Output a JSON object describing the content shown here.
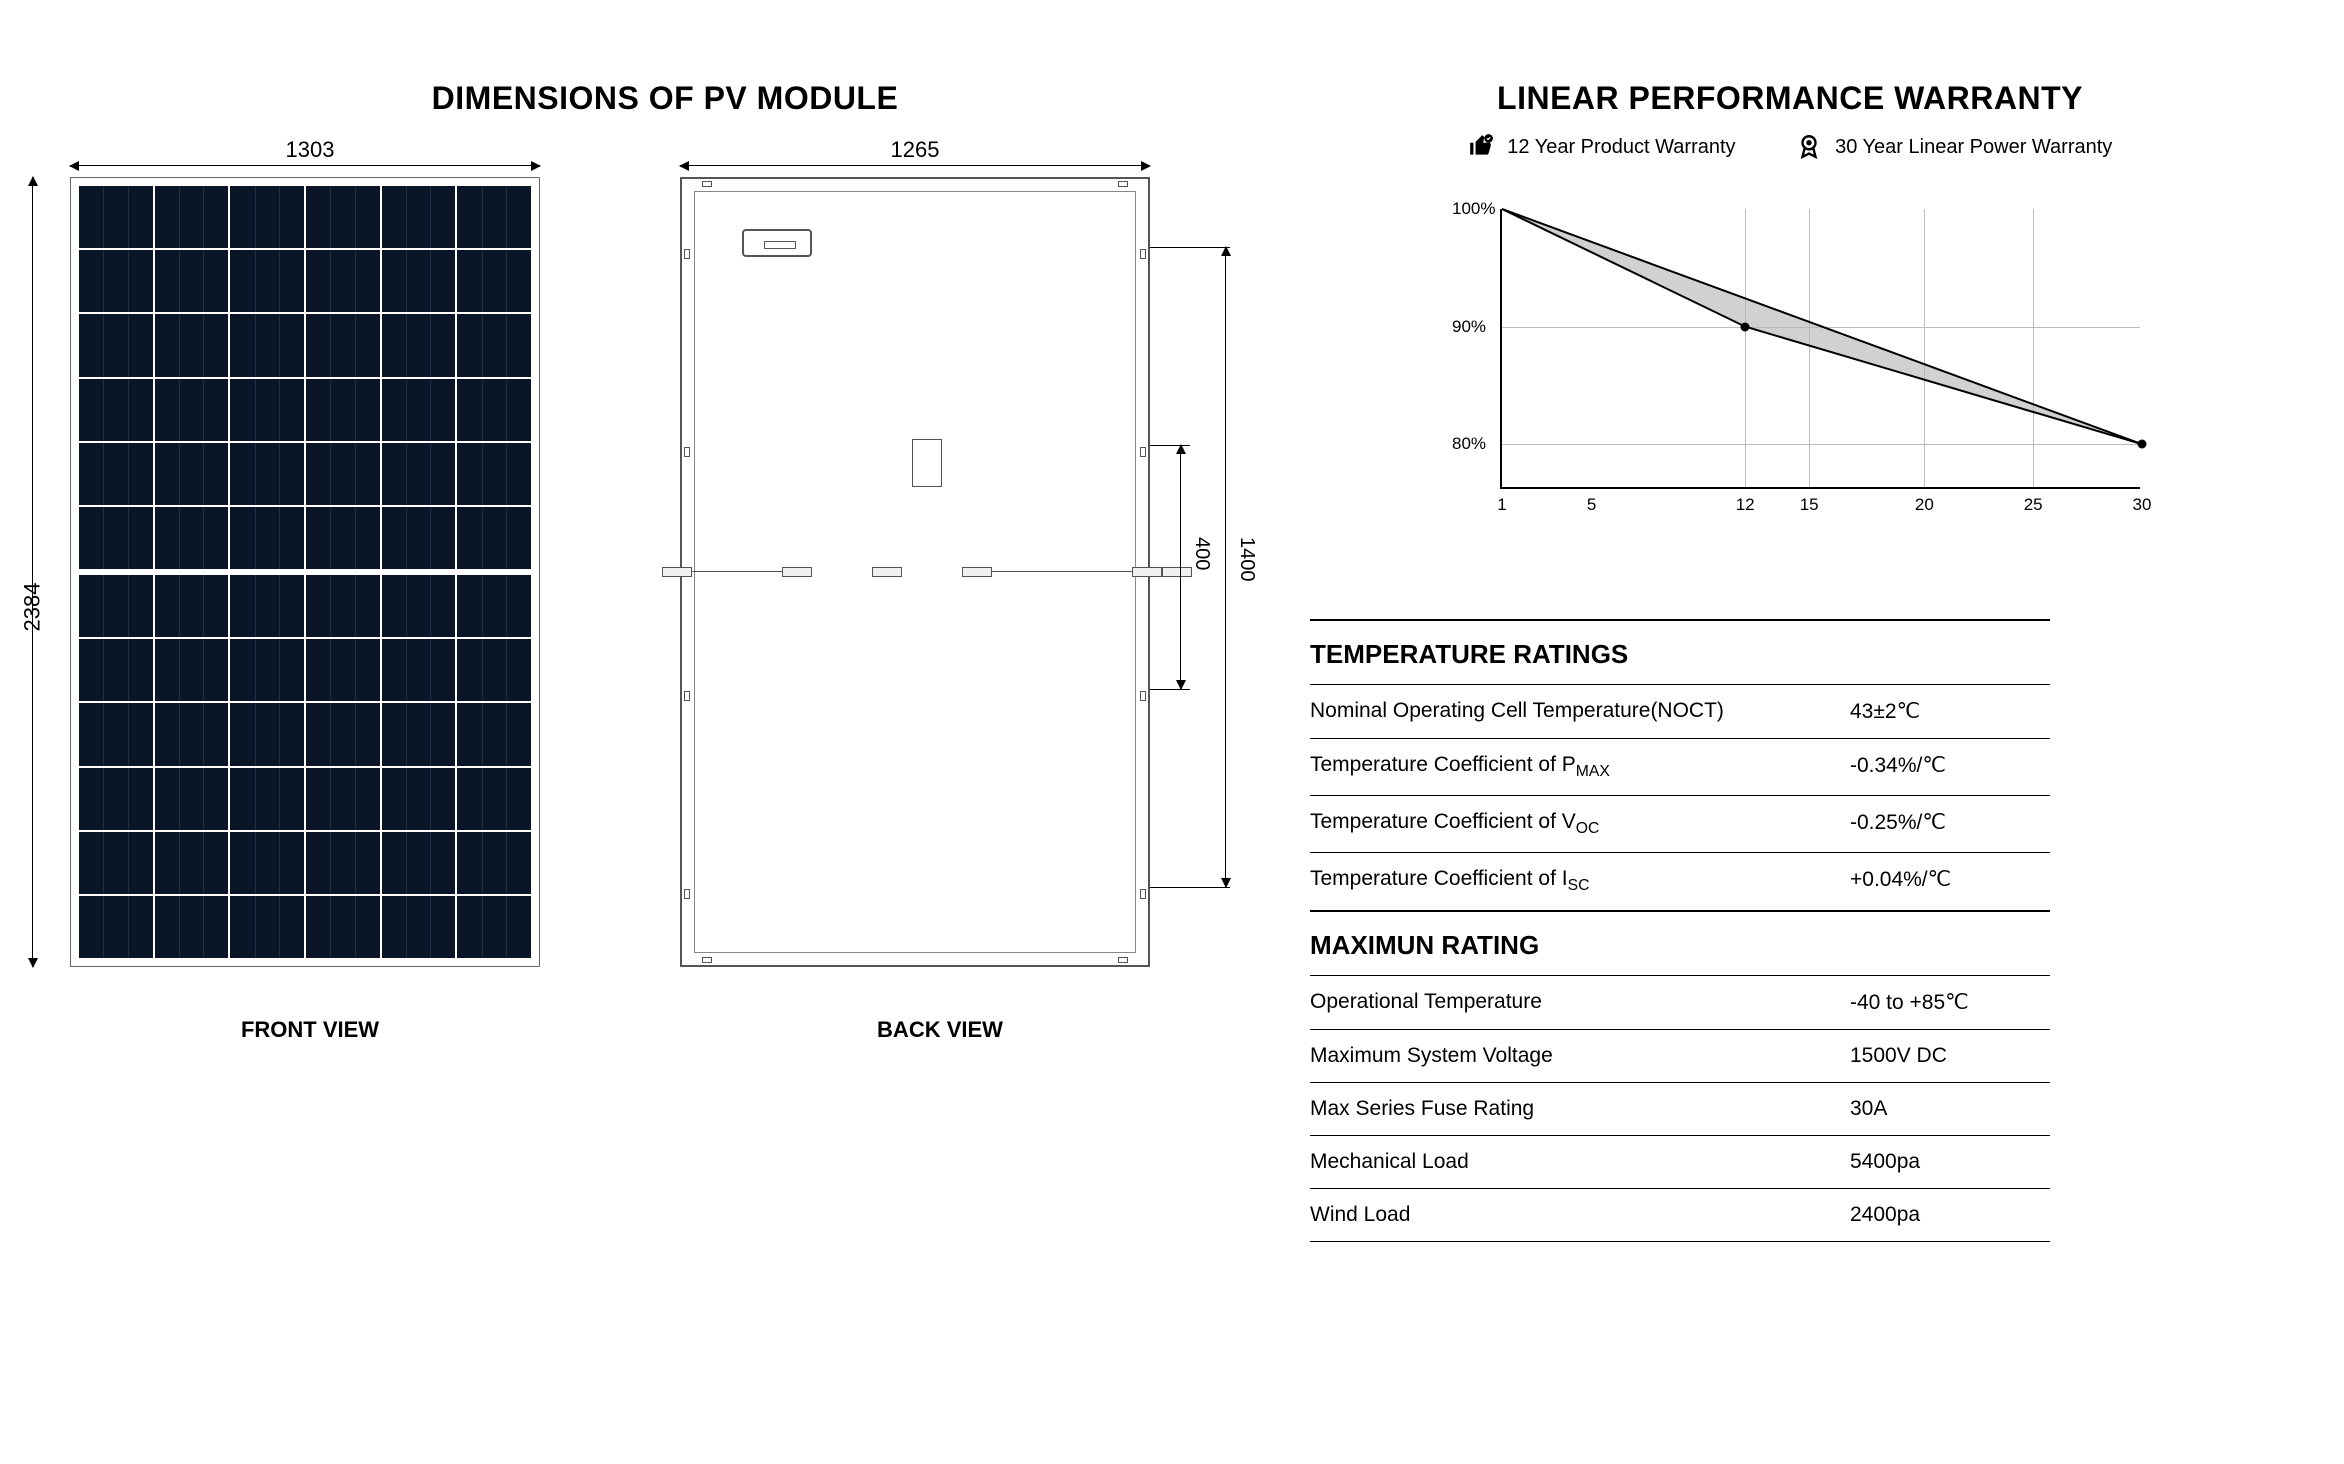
{
  "dimensions": {
    "title": "DIMENSIONS OF PV MODULE",
    "front_label": "FRONT VIEW",
    "back_label": "BACK VIEW",
    "width_mm": "1303",
    "height_mm": "2384",
    "back_width_mm": "1265",
    "mount_span_mm": "1400",
    "mount_inner_mm": "400",
    "panel_color": "#0a1628",
    "frame_color": "#666666"
  },
  "warranty": {
    "title": "LINEAR PERFORMANCE WARRANTY",
    "product_label": "12 Year Product Warranty",
    "linear_label": "30 Year Linear Power Warranty",
    "chart": {
      "y_ticks": [
        "100%",
        "90%",
        "80%"
      ],
      "y_positions_pct": [
        0,
        42,
        84
      ],
      "x_ticks": [
        "1",
        "5",
        "12",
        "15",
        "20",
        "25",
        "30"
      ],
      "x_positions_pct": [
        0,
        14,
        38,
        48,
        66,
        83,
        100
      ],
      "upper_line": [
        [
          0,
          0
        ],
        [
          100,
          84
        ]
      ],
      "lower_line": [
        [
          0,
          0
        ],
        [
          38,
          42
        ],
        [
          100,
          84
        ]
      ],
      "fill_color": "#b8b8b8",
      "line_color": "#000000",
      "grid_color": "#bbbbbb"
    }
  },
  "temp_ratings": {
    "title": "TEMPERATURE RATINGS",
    "rows": [
      {
        "k": "Nominal Operating Cell Temperature(NOCT)",
        "sub": "",
        "v": "43±2℃"
      },
      {
        "k": "Temperature Coefficient of P",
        "sub": "MAX",
        "v": "-0.34%/℃"
      },
      {
        "k": "Temperature Coefficient of V",
        "sub": "OC",
        "v": "-0.25%/℃"
      },
      {
        "k": "Temperature Coefficient of I",
        "sub": "SC",
        "v": "+0.04%/℃"
      }
    ]
  },
  "max_rating": {
    "title": "MAXIMUN RATING",
    "rows": [
      {
        "k": "Operational Temperature",
        "v": "-40 to +85℃"
      },
      {
        "k": "Maximum System Voltage",
        "v": "1500V DC"
      },
      {
        "k": "Max Series Fuse Rating",
        "v": "30A"
      },
      {
        "k": "Mechanical Load",
        "v": "5400pa"
      },
      {
        "k": "Wind Load",
        "v": "2400pa"
      }
    ]
  }
}
